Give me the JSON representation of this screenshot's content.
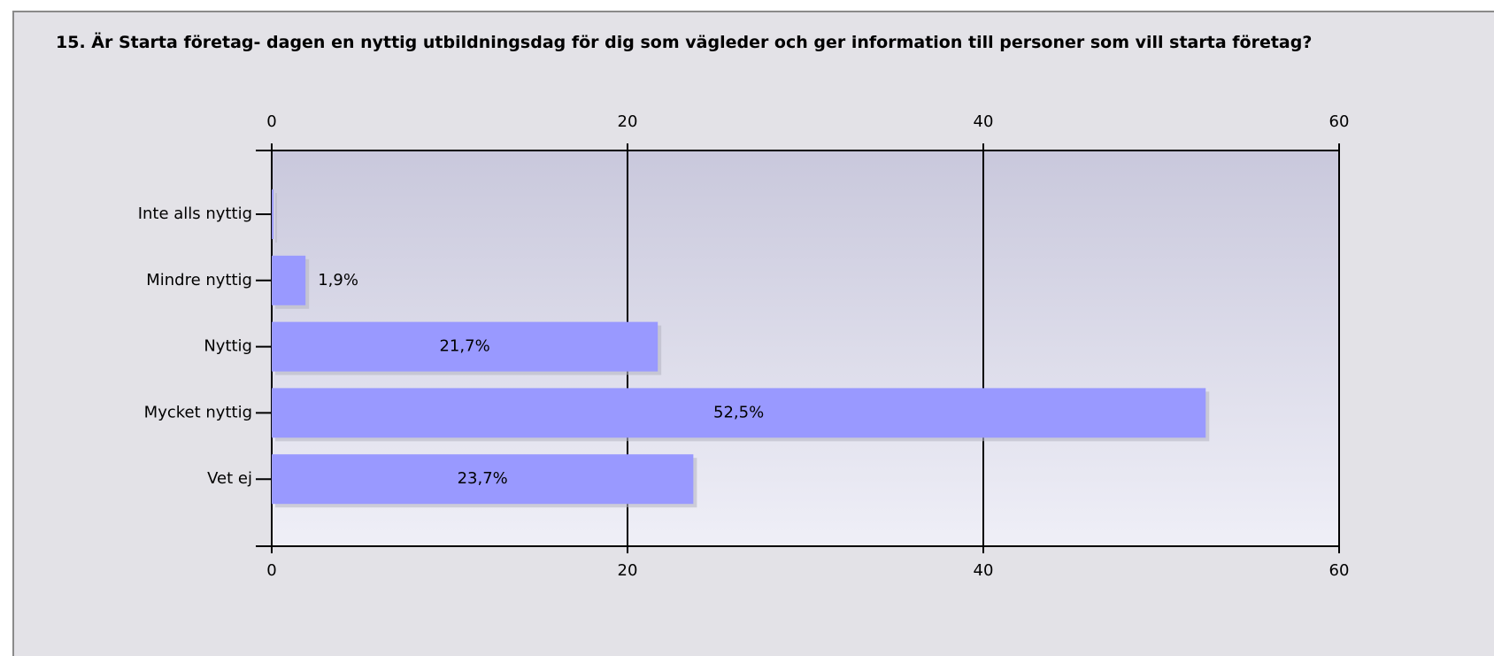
{
  "chart_data": {
    "type": "bar",
    "orientation": "horizontal",
    "title": "15. Är Starta företag- dagen en nyttig utbildningsdag för dig som vägleder och ger information till personer som vill starta företag?",
    "categories": [
      "Inte alls nyttig",
      "Mindre nyttig",
      "Nyttig",
      "Mycket nyttig",
      "Vet ej"
    ],
    "values": [
      0,
      1.9,
      21.7,
      52.5,
      23.7
    ],
    "value_labels": [
      null,
      "1,9%",
      "21,7%",
      "52,5%",
      "23,7%"
    ],
    "color": "#9999ff",
    "xlim": [
      0,
      60
    ],
    "xticks": [
      0,
      20,
      40,
      60
    ],
    "grid": true
  }
}
